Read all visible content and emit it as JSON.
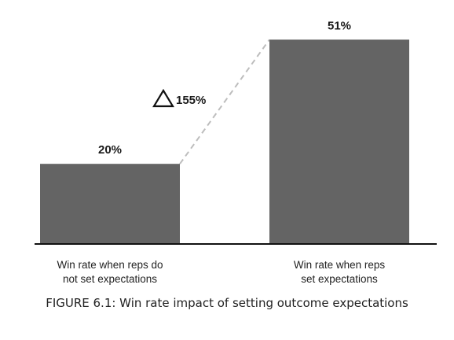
{
  "chart_data": {
    "type": "bar",
    "categories": [
      [
        "Win rate when reps do",
        "not set expectations"
      ],
      [
        "Win rate when reps",
        "set expectations"
      ]
    ],
    "values": [
      20,
      51
    ],
    "value_labels": [
      "20%",
      "51%"
    ],
    "ylim": [
      0,
      55
    ],
    "grid": false,
    "bar_color": "#646464",
    "annotation": {
      "symbol": "triangle",
      "text": "155%"
    },
    "caption": "FIGURE 6.1: Win rate impact of setting outcome expectations"
  }
}
